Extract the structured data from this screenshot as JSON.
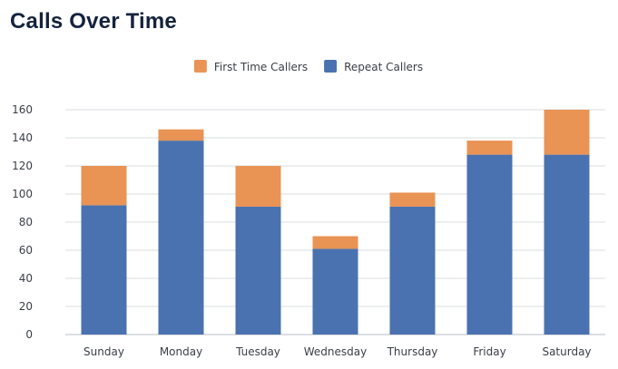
{
  "chart_data": {
    "type": "bar",
    "stacked": true,
    "title": "Calls Over Time",
    "xlabel": "",
    "ylabel": "",
    "categories": [
      "Sunday",
      "Monday",
      "Tuesday",
      "Wednesday",
      "Thursday",
      "Friday",
      "Saturday"
    ],
    "series": [
      {
        "name": "Repeat Callers",
        "color": "#4a72b0",
        "values": [
          92,
          138,
          91,
          61,
          91,
          128,
          128
        ]
      },
      {
        "name": "First Time Callers",
        "color": "#e99355",
        "values": [
          28,
          8,
          29,
          9,
          10,
          10,
          32
        ]
      }
    ],
    "ylim": [
      0,
      160
    ],
    "yticks": [
      0,
      20,
      40,
      60,
      80,
      100,
      120,
      140,
      160
    ],
    "legend_order": [
      "First Time Callers",
      "Repeat Callers"
    ],
    "legend_position": "top",
    "grid": true
  }
}
